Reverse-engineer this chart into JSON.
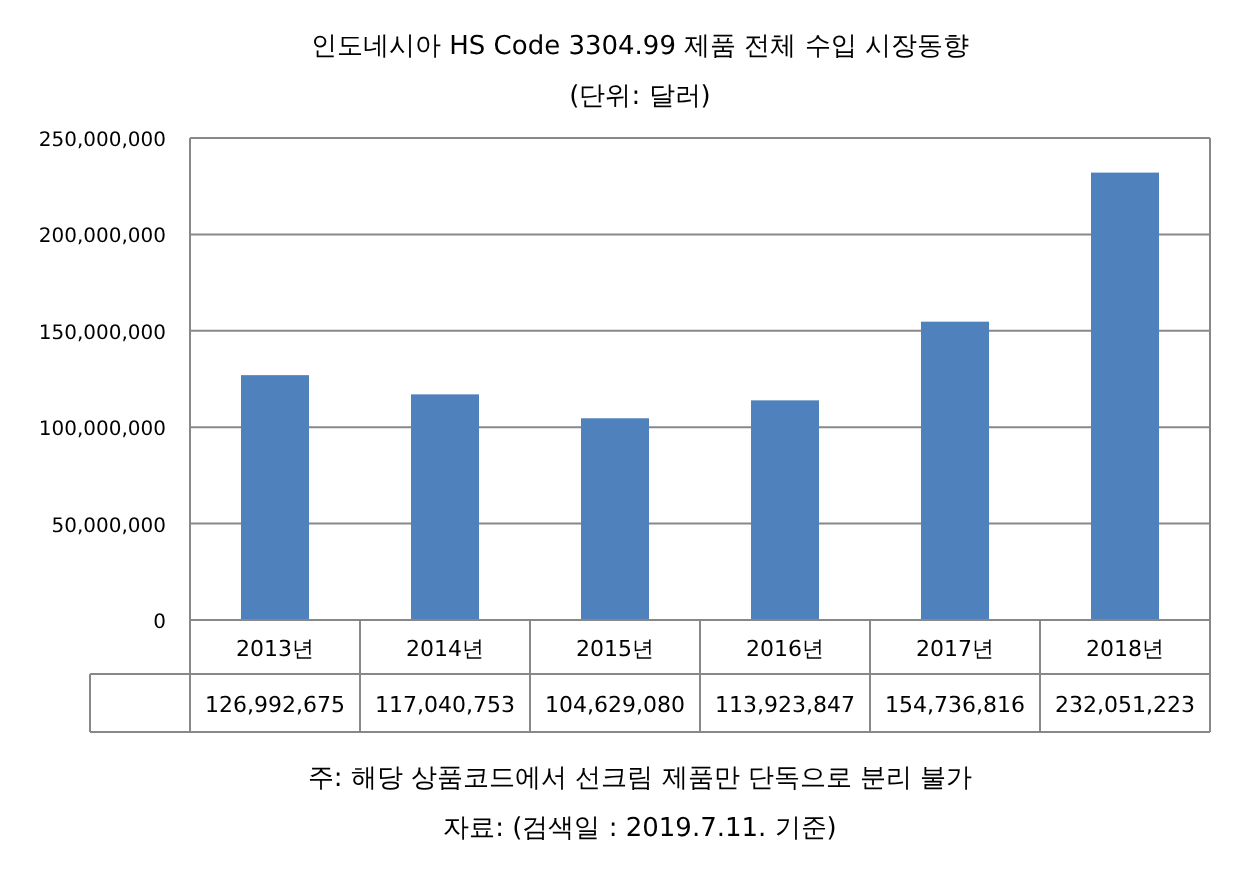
{
  "chart_data": {
    "type": "bar",
    "title": "인도네시아 HS Code 3304.99 제품 전체 수입 시장동향",
    "subtitle": "(단위: 달러)",
    "categories": [
      "2013년",
      "2014년",
      "2015년",
      "2016년",
      "2017년",
      "2018년"
    ],
    "values": [
      126992675,
      117040753,
      104629080,
      113923847,
      154736816,
      232051223
    ],
    "value_labels": [
      "126,992,675",
      "117,040,753",
      "104,629,080",
      "113,923,847",
      "154,736,816",
      "232,051,223"
    ],
    "color": "#4f81bd",
    "ylim": [
      0,
      250000000
    ],
    "yticks": [
      0,
      {
        "value": 50000000,
        "label": "50,000,000"
      },
      {
        "value": 100000000,
        "label": "100,000,000"
      },
      {
        "value": 150000000,
        "label": "150,000,000"
      },
      {
        "value": 200000000,
        "label": "200,000,000"
      },
      {
        "value": 250000000,
        "label": "250,000,000"
      }
    ],
    "grid": "y",
    "annotations": [
      "주: 해당 상품코드에서 선크림 제품만 단독으로 분리 불가",
      "자료: (검색일 : 2019.7.11. 기준)"
    ]
  }
}
